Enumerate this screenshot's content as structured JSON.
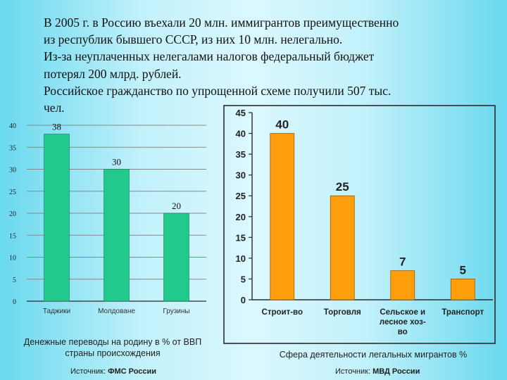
{
  "headline": [
    "В 2005 г. в Россию въехали 20 млн. иммигрантов преимущественно",
    "из республик бывшего СССР, из них 10 млн. нелегально.",
    "Из-за неуплаченных нелегалами налогов федеральный бюджет",
    "потерял 200 млрд. рублей.",
    "Российское гражданство по упрощенной схеме получили 507 тыс.",
    "чел."
  ],
  "left_caption": [
    "Денежные переводы на родину в % от ВВП",
    "страны происхождения"
  ],
  "left_source": {
    "prefix": "Источник: ",
    "name": "ФМС России"
  },
  "right_caption": "Сфера деятельности легальных мигрантов  %",
  "right_source": {
    "prefix": "Источник: ",
    "name": "МВД России"
  },
  "colors": {
    "left_bar": "#22c98d",
    "right_bar": "#ff9e0c",
    "frame": "#2b2b2b",
    "grid": "#888888"
  },
  "chart_data": [
    {
      "type": "bar",
      "title": "Денежные переводы на родину в % от ВВП страны происхождения",
      "categories": [
        "Таджики",
        "Молдоване",
        "Грузины"
      ],
      "values": [
        38,
        30,
        20
      ],
      "value_labels": [
        "38",
        "30",
        "20"
      ],
      "yticks": [
        0,
        5,
        10,
        15,
        20,
        25,
        30,
        35,
        40
      ],
      "ylim": [
        0,
        40
      ],
      "grid": true
    },
    {
      "type": "bar",
      "title": "Сфера деятельности легальных мигрантов  %",
      "categories": [
        [
          "Строит-во"
        ],
        [
          "Торговля"
        ],
        [
          "Сельское и",
          "лесное хоз-",
          "во"
        ],
        [
          "Транспорт"
        ]
      ],
      "values": [
        40,
        25,
        7,
        5
      ],
      "value_labels": [
        "40",
        "25",
        "7",
        "5"
      ],
      "yticks": [
        0,
        5,
        10,
        15,
        20,
        25,
        30,
        35,
        40,
        45
      ],
      "ylim": [
        0,
        45
      ],
      "grid": false
    }
  ]
}
